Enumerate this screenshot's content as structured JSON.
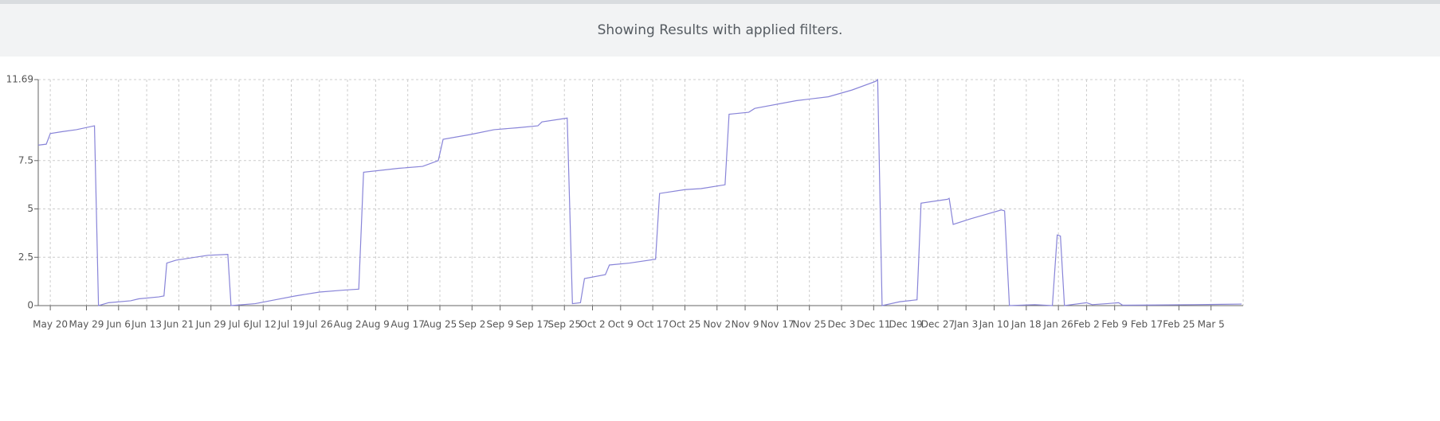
{
  "banner": {
    "text": "Showing Results with applied filters."
  },
  "chart_data": {
    "type": "line",
    "x": [
      -3,
      -1,
      0,
      3,
      6.5,
      11,
      12,
      14.5,
      20,
      22,
      27,
      28.3,
      29,
      31.3,
      39.2,
      44.2,
      45,
      51,
      56,
      61,
      67,
      73,
      76.8,
      78,
      86.7,
      92.7,
      96.6,
      97.8,
      104.6,
      110.5,
      116.4,
      121.4,
      122.4,
      128.7,
      130,
      132,
      133,
      138.2,
      139.2,
      144.2,
      150.7,
      151.7,
      158,
      162,
      168,
      169,
      173.9,
      175.4,
      185.7,
      193.7,
      199.6,
      205.5,
      206,
      207.1,
      211.5,
      215.8,
      216.8,
      223.4,
      223.8,
      224.8,
      229.3,
      234.3,
      236.8,
      237.6,
      238.8,
      245.1,
      249.5,
      250.7,
      251.5,
      252.5,
      258,
      259.4,
      263,
      266,
      267,
      274.9,
      284.8,
      296.6
    ],
    "series": [
      {
        "color": "#8884d8",
        "values": [
          8.3,
          8.35,
          8.9,
          9.0,
          9.1,
          9.3,
          0,
          0.15,
          0.25,
          0.35,
          0.45,
          0.5,
          2.2,
          2.35,
          2.6,
          2.65,
          0,
          0.1,
          0.3,
          0.5,
          0.7,
          0.8,
          0.85,
          6.9,
          7.1,
          7.2,
          7.5,
          8.6,
          8.85,
          9.1,
          9.2,
          9.3,
          9.5,
          9.7,
          0.1,
          0.15,
          1.4,
          1.6,
          2.1,
          2.2,
          2.4,
          5.8,
          6.0,
          6.05,
          6.25,
          9.9,
          10.0,
          10.2,
          10.6,
          10.8,
          11.15,
          11.6,
          11.69,
          0,
          0.2,
          0.3,
          5.3,
          5.5,
          5.55,
          4.2,
          4.5,
          4.8,
          4.95,
          4.9,
          0,
          0.05,
          0,
          3.65,
          3.6,
          0,
          0.15,
          0.05,
          0.1,
          0.15,
          0.02,
          0.03,
          0.05,
          0.08
        ]
      }
    ],
    "xlim": [
      -3,
      297
    ],
    "xticks": [
      {
        "value": 0,
        "label": "May 20"
      },
      {
        "value": 9,
        "label": "May 29"
      },
      {
        "value": 17,
        "label": "Jun 6"
      },
      {
        "value": 24,
        "label": "Jun 13"
      },
      {
        "value": 32,
        "label": "Jun 21"
      },
      {
        "value": 40,
        "label": "Jun 29"
      },
      {
        "value": 47,
        "label": "Jul 6"
      },
      {
        "value": 53,
        "label": "Jul 12"
      },
      {
        "value": 60,
        "label": "Jul 19"
      },
      {
        "value": 67,
        "label": "Jul 26"
      },
      {
        "value": 74,
        "label": "Aug 2"
      },
      {
        "value": 81,
        "label": "Aug 9"
      },
      {
        "value": 89,
        "label": "Aug 17"
      },
      {
        "value": 97,
        "label": "Aug 25"
      },
      {
        "value": 105,
        "label": "Sep 2"
      },
      {
        "value": 112,
        "label": "Sep 9"
      },
      {
        "value": 120,
        "label": "Sep 17"
      },
      {
        "value": 128,
        "label": "Sep 25"
      },
      {
        "value": 135,
        "label": "Oct 2"
      },
      {
        "value": 142,
        "label": "Oct 9"
      },
      {
        "value": 150,
        "label": "Oct 17"
      },
      {
        "value": 158,
        "label": "Oct 25"
      },
      {
        "value": 166,
        "label": "Nov 2"
      },
      {
        "value": 173,
        "label": "Nov 9"
      },
      {
        "value": 181,
        "label": "Nov 17"
      },
      {
        "value": 189,
        "label": "Nov 25"
      },
      {
        "value": 197,
        "label": "Dec 3"
      },
      {
        "value": 205,
        "label": "Dec 11"
      },
      {
        "value": 213,
        "label": "Dec 19"
      },
      {
        "value": 221,
        "label": "Dec 27"
      },
      {
        "value": 228,
        "label": "Jan 3"
      },
      {
        "value": 235,
        "label": "Jan 10"
      },
      {
        "value": 243,
        "label": "Jan 18"
      },
      {
        "value": 251,
        "label": "Jan 26"
      },
      {
        "value": 258,
        "label": "Feb 2"
      },
      {
        "value": 265,
        "label": "Feb 9"
      },
      {
        "value": 273,
        "label": "Feb 17"
      },
      {
        "value": 281,
        "label": "Feb 25"
      },
      {
        "value": 289,
        "label": "Mar 5"
      }
    ],
    "ylim": [
      0,
      11.69
    ],
    "yticks": [
      0,
      2.5,
      5,
      7.5,
      11.69
    ],
    "grid": true
  }
}
